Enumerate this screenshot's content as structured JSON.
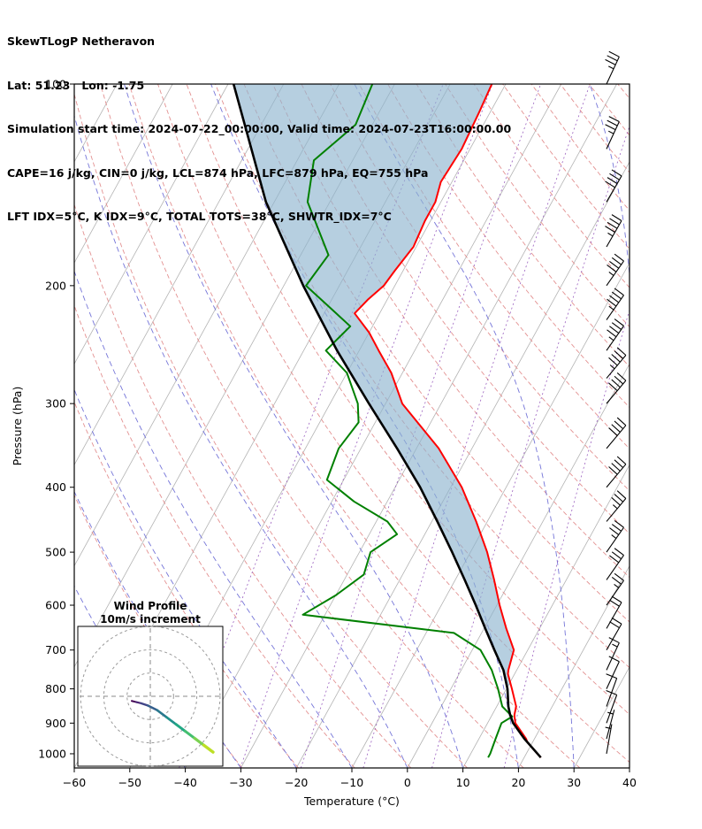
{
  "header": {
    "line1": "SkewTLogP Netheravon",
    "line2": "Lat: 51.23   Lon: -1.75",
    "line3": "Simulation start time: 2024-07-22_00:00:00, Valid time: 2024-07-23T16:00:00.00",
    "line4": "CAPE=16 j/kg, CIN=0 j/kg, LCL=874 hPa, LFC=879 hPa, EQ=755 hPa",
    "line5": "LFT IDX=5°C, K IDX=9°C, TOTAL TOTS=38°C, SHWTR_IDX=7°C"
  },
  "chart_data": {
    "type": "skewt-logp",
    "station": "Netheravon",
    "lat": 51.23,
    "lon": -1.75,
    "sim_start": "2024-07-22_00:00:00",
    "valid_time": "2024-07-23T16:00:00.00",
    "indices": {
      "CAPE_jkg": 16,
      "CIN_jkg": 0,
      "LCL_hPa": 874,
      "LFC_hPa": 879,
      "EQ_hPa": 755,
      "LFT_IDX_C": 5,
      "K_IDX_C": 9,
      "TOTAL_TOTS_C": 38,
      "SHWTR_IDX_C": 7
    },
    "pressure_axis": {
      "label": "Pressure (hPa)",
      "scale": "log",
      "range": [
        100,
        1050
      ],
      "ticks": [
        100,
        200,
        300,
        400,
        500,
        600,
        700,
        800,
        900,
        1000
      ]
    },
    "temp_axis": {
      "label": "Temperature (°C)",
      "range": [
        -60,
        40
      ],
      "ticks": [
        -60,
        -50,
        -40,
        -30,
        -20,
        -10,
        0,
        10,
        20,
        30,
        40
      ]
    },
    "temperature_profile": {
      "pressure_hPa": [
        1013,
        1000,
        960,
        950,
        900,
        880,
        874,
        850,
        800,
        760,
        750,
        700,
        650,
        600,
        550,
        500,
        450,
        400,
        350,
        300,
        270,
        250,
        235,
        220,
        210,
        200,
        190,
        175,
        160,
        150,
        140,
        125,
        110,
        100
      ],
      "temp_C": [
        23,
        22,
        19,
        18.5,
        15,
        14.2,
        14,
        13.5,
        11,
        8.8,
        8.5,
        7.5,
        4,
        0.5,
        -3,
        -7,
        -12,
        -18,
        -26,
        -37,
        -42,
        -46.5,
        -50,
        -54.5,
        -53.5,
        -52,
        -51.5,
        -50.5,
        -51,
        -51,
        -52,
        -51.5,
        -52,
        -52.5
      ]
    },
    "dewpoint_profile": {
      "pressure_hPa": [
        1013,
        1000,
        950,
        900,
        880,
        850,
        800,
        750,
        700,
        660,
        620,
        580,
        540,
        500,
        470,
        450,
        420,
        390,
        350,
        320,
        300,
        270,
        250,
        230,
        200,
        180,
        150,
        130,
        115,
        100
      ],
      "temp_C": [
        13.5,
        13.5,
        13,
        12.5,
        13.8,
        11,
        8.5,
        5.5,
        1.5,
        -5,
        -34,
        -30,
        -27,
        -28,
        -25,
        -28,
        -36,
        -43,
        -44,
        -43,
        -45,
        -50,
        -56,
        -54,
        -66,
        -65,
        -74,
        -77,
        -73,
        -74
      ]
    },
    "parcel_profile": {
      "pressure_hPa": [
        1013,
        950,
        900,
        874,
        850,
        800,
        750,
        700,
        650,
        600,
        550,
        500,
        450,
        400,
        350,
        300,
        250,
        200,
        150,
        100
      ],
      "temp_C": [
        23,
        18.2,
        14.6,
        13.2,
        12.1,
        10.2,
        7.6,
        4,
        0.2,
        -3.8,
        -8.3,
        -13.3,
        -19,
        -25.5,
        -33.5,
        -43,
        -54,
        -66.5,
        -81.5,
        -99
      ]
    },
    "winds": {
      "pressure_hPa": [
        100,
        125,
        150,
        175,
        200,
        225,
        250,
        275,
        300,
        350,
        400,
        450,
        500,
        550,
        600,
        650,
        700,
        750,
        800,
        850,
        900,
        950,
        1000
      ],
      "speed_kt": [
        35,
        35,
        40,
        45,
        45,
        45,
        45,
        45,
        40,
        40,
        40,
        35,
        35,
        30,
        25,
        20,
        20,
        15,
        10,
        10,
        10,
        5,
        5
      ],
      "dir_deg": [
        205,
        205,
        210,
        210,
        215,
        215,
        215,
        220,
        220,
        220,
        220,
        220,
        215,
        215,
        215,
        210,
        210,
        205,
        205,
        200,
        200,
        195,
        190
      ]
    },
    "hodograph": {
      "title": "Wind Profile",
      "subtitle": "10m/s increment",
      "ring_interval_ms": 10,
      "u_ms": [
        -8,
        -6,
        -4,
        -1,
        3,
        7,
        11,
        15,
        19,
        23,
        27
      ],
      "v_ms": [
        -2,
        -2.5,
        -3,
        -4,
        -6,
        -9,
        -12,
        -15,
        -18,
        -21,
        -24
      ]
    },
    "style": {
      "temp_color": "#ff0000",
      "dewpoint_color": "#008000",
      "parcel_color": "#000000",
      "cape_fill": "#8fb6d0",
      "isotherm_color": "#b3b3b3",
      "dry_adiabat_color": "#e39191",
      "moist_adiabat_color": "#7575d8",
      "mixing_ratio_color": "#9a5fbf",
      "barb_color": "#000000",
      "viridis": [
        "#440154",
        "#482475",
        "#414487",
        "#355f8d",
        "#2a788e",
        "#21918c",
        "#22a884",
        "#44bf70",
        "#7ad151",
        "#bddf26"
      ]
    }
  }
}
